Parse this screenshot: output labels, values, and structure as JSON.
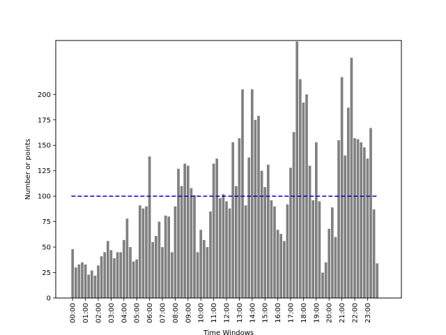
{
  "chart_data": {
    "type": "bar",
    "title": "",
    "xlabel": "Time Windows",
    "ylabel": "Number or points",
    "ylim": [
      0,
      253
    ],
    "yticks": [
      0,
      25,
      50,
      75,
      100,
      125,
      150,
      175,
      200
    ],
    "xtick_labels": [
      "00:00",
      "01:00",
      "02:00",
      "03:00",
      "04:00",
      "05:00",
      "06:00",
      "07:00",
      "08:00",
      "09:00",
      "10:00",
      "11:00",
      "12:00",
      "13:00",
      "14:00",
      "15:00",
      "16:00",
      "17:00",
      "18:00",
      "19:00",
      "20:00",
      "21:00",
      "22:00",
      "23:00"
    ],
    "bars_per_hour": 4,
    "values": [
      48,
      30,
      33,
      35,
      33,
      23,
      27,
      22,
      32,
      41,
      45,
      56,
      47,
      39,
      45,
      45,
      57,
      78,
      50,
      36,
      38,
      91,
      88,
      90,
      139,
      55,
      61,
      75,
      50,
      81,
      80,
      45,
      90,
      127,
      110,
      132,
      130,
      108,
      101,
      45,
      67,
      57,
      50,
      85,
      132,
      137,
      98,
      102,
      95,
      88,
      153,
      110,
      157,
      205,
      91,
      138,
      205,
      175,
      179,
      125,
      109,
      131,
      96,
      90,
      67,
      63,
      56,
      92,
      128,
      163,
      252,
      215,
      192,
      200,
      130,
      96,
      153,
      95,
      25,
      35,
      68,
      89,
      60,
      155,
      217,
      140,
      187,
      236,
      157,
      156,
      153,
      148,
      137,
      167,
      87,
      34
    ],
    "bar_color": "#808080",
    "threshold": 100,
    "threshold_color": "#0000cc",
    "grid": false,
    "legend": "none"
  }
}
